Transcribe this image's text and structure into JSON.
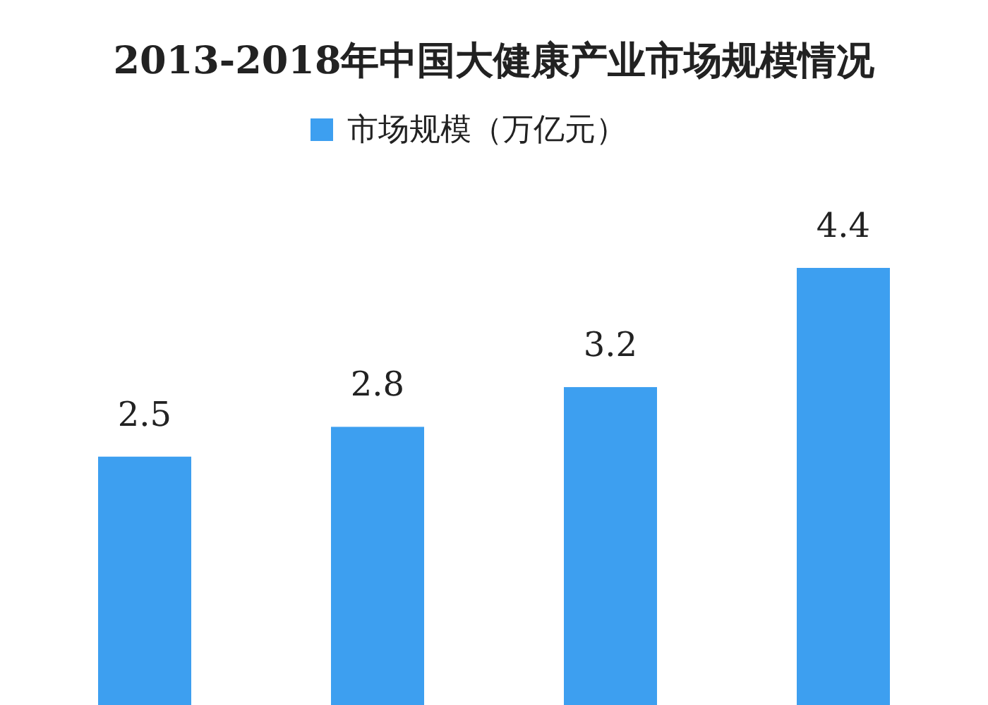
{
  "chart_data": {
    "type": "bar",
    "title": "2013-2018年中国大健康产业市场规模情况",
    "categories": [
      null,
      null,
      null,
      null
    ],
    "series": [
      {
        "name": "市场规模（万亿元）",
        "color": "#3d9ff0",
        "values": [
          2.5,
          2.8,
          3.2,
          4.4
        ]
      }
    ],
    "data_labels": true,
    "legend": "top"
  }
}
